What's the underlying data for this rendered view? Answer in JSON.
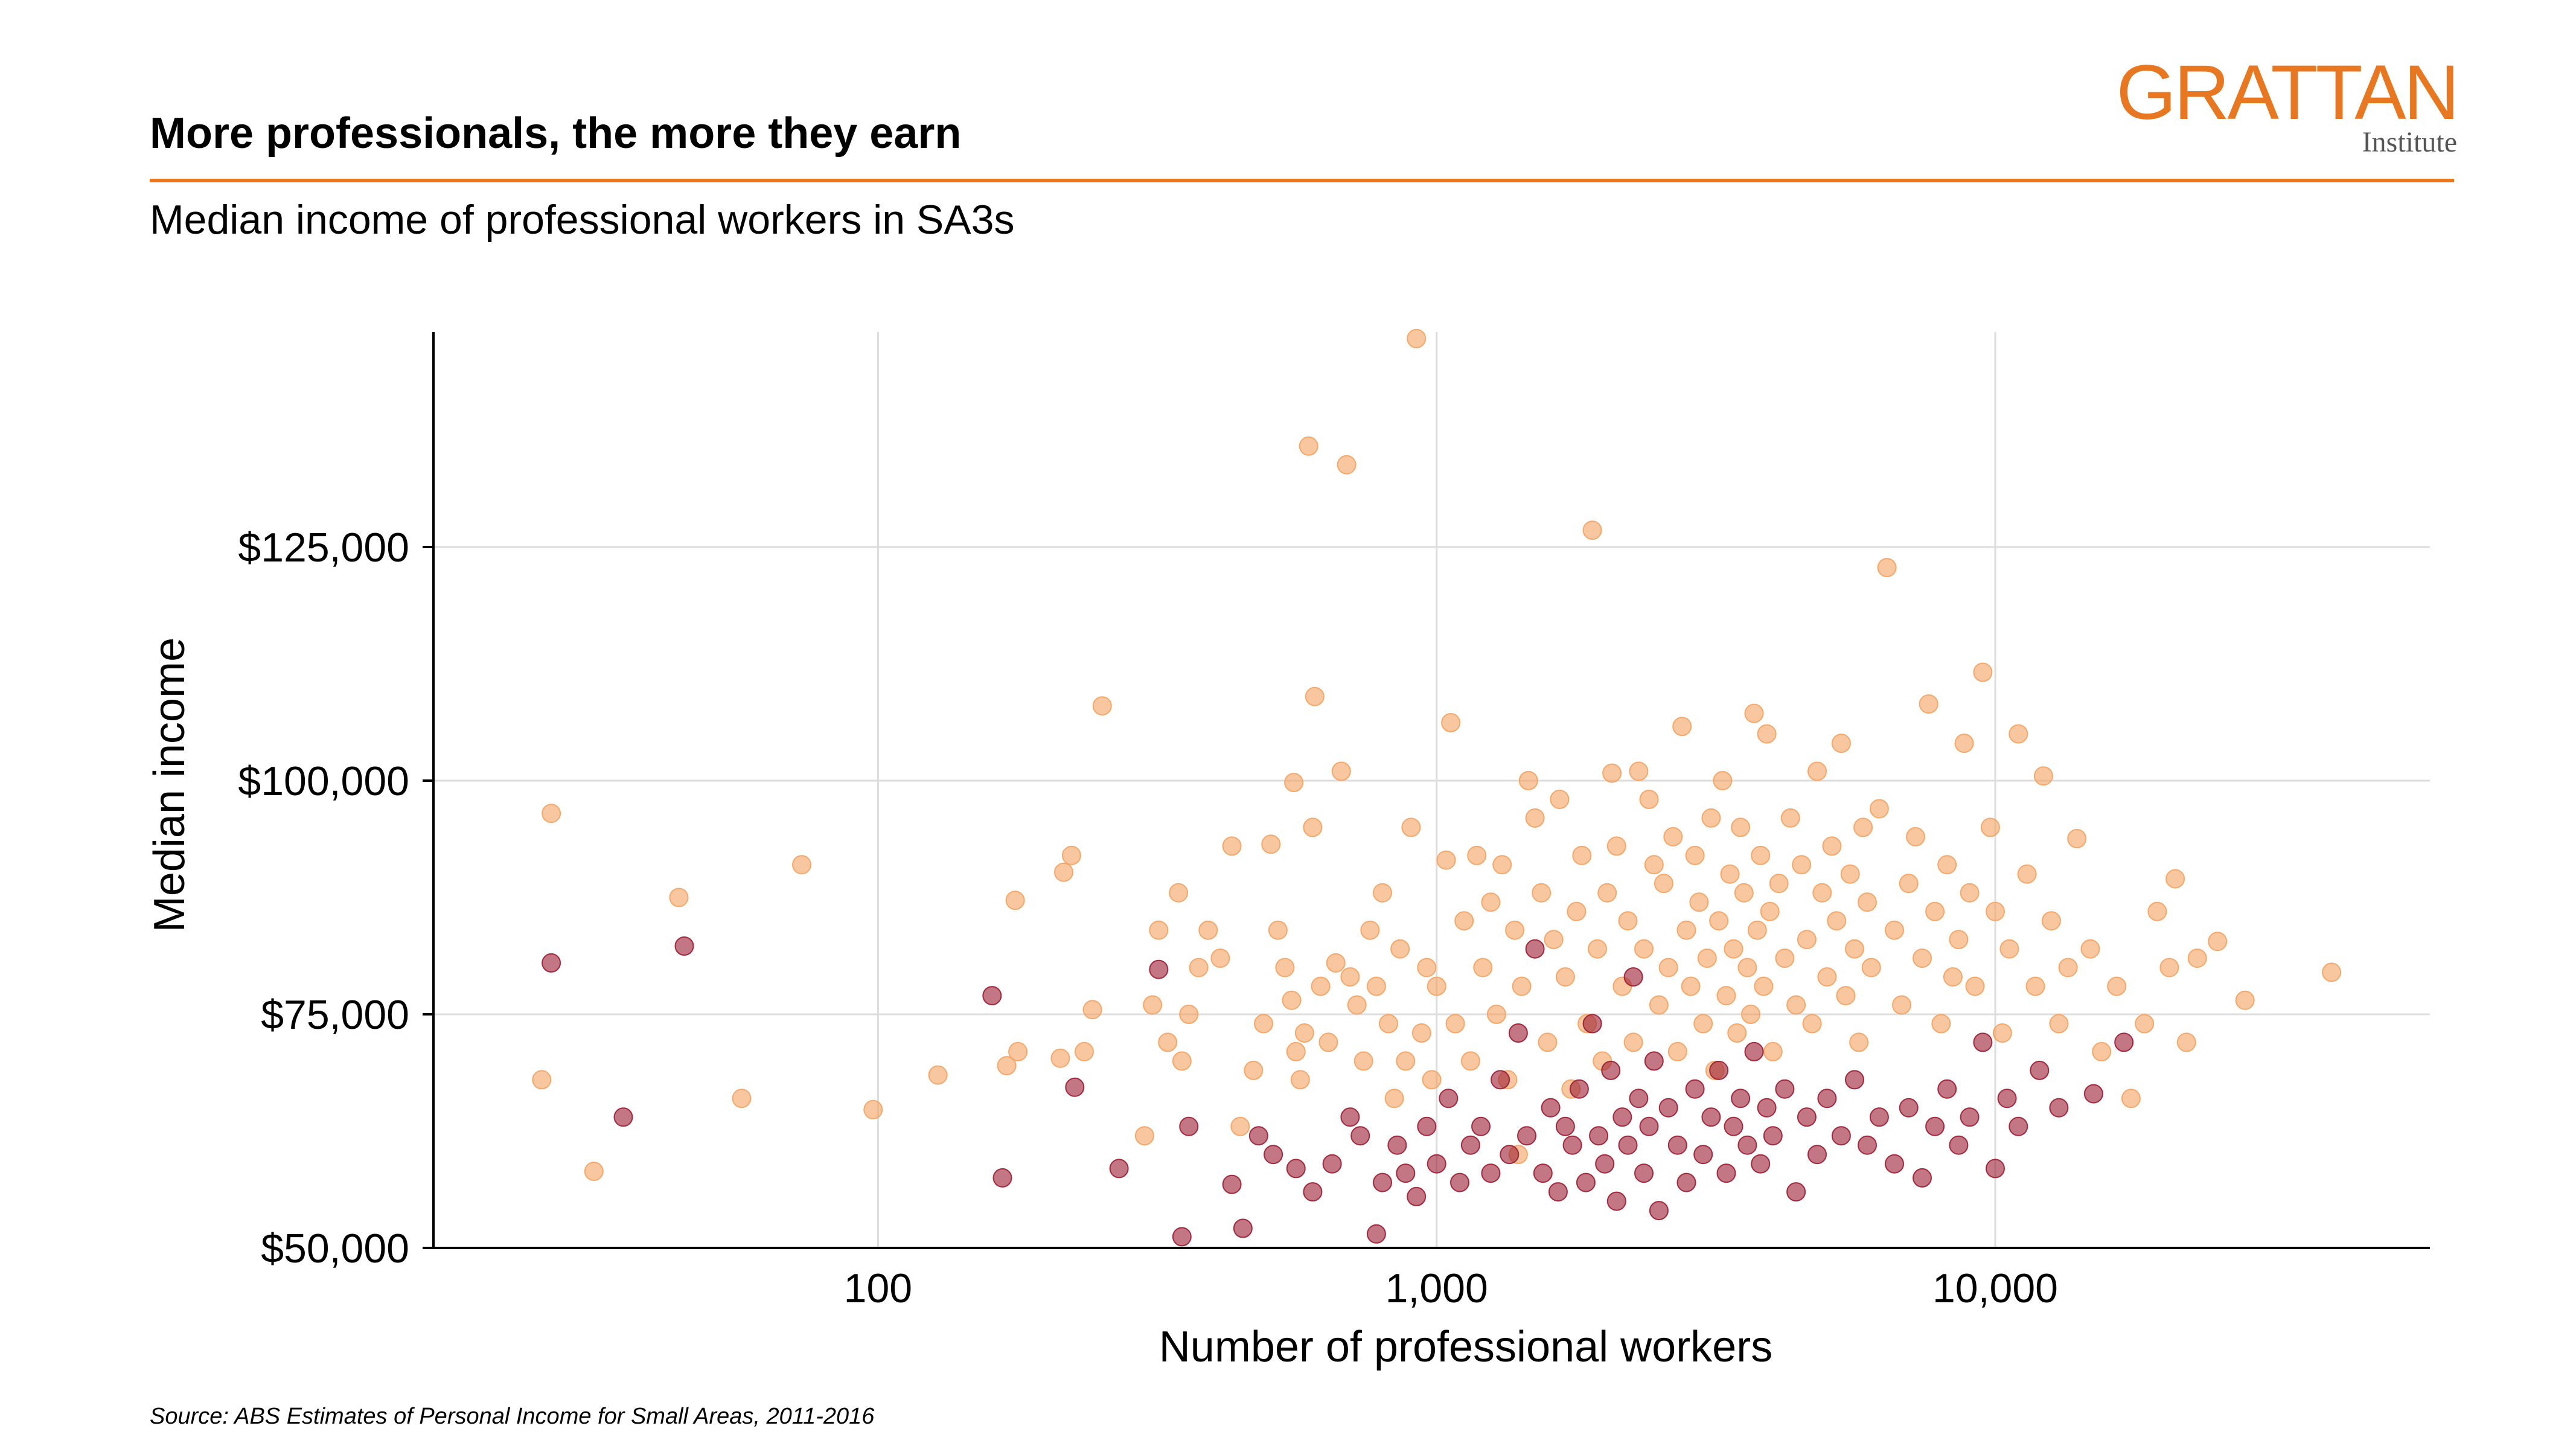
{
  "header": {
    "title": "More professionals, the more they earn",
    "subtitle": "Median income of professional workers in SA3s"
  },
  "logo": {
    "main": "GRATTAN",
    "sub": "Institute"
  },
  "source": "Source: ABS Estimates of Personal Income for Small Areas, 2011-2016",
  "colors": {
    "accent": "#E87722",
    "light_points": "#F4A261",
    "dark_points": "#9B1B30",
    "grid": "#dddddd"
  },
  "chart_data": {
    "type": "scatter",
    "title": "More professionals, the more they earn",
    "subtitle": "Median income of professional workers in SA3s",
    "xlabel": "Number of professional workers",
    "ylabel": "Median income",
    "x_scale": "log",
    "xlim": [
      16,
      60000
    ],
    "ylim": [
      50000,
      148000
    ],
    "x_ticks": [
      100,
      1000,
      10000
    ],
    "x_tick_labels": [
      "100",
      "1,000",
      "10,000"
    ],
    "y_ticks": [
      50000,
      75000,
      100000,
      125000
    ],
    "y_tick_labels": [
      "$50,000",
      "$75,000",
      "$100,000",
      "$125,000"
    ],
    "grid": true,
    "legend": "none",
    "series": [
      {
        "color": "#F4A261",
        "points": [
          [
            25,
            68000
          ],
          [
            26,
            96500
          ],
          [
            31,
            58200
          ],
          [
            44,
            87500
          ],
          [
            57,
            66000
          ],
          [
            73,
            91000
          ],
          [
            98,
            64800
          ],
          [
            128,
            68500
          ],
          [
            170,
            69500
          ],
          [
            176,
            87200
          ],
          [
            178,
            71000
          ],
          [
            212,
            70300
          ],
          [
            215,
            90200
          ],
          [
            222,
            92000
          ],
          [
            234,
            71000
          ],
          [
            242,
            75500
          ],
          [
            252,
            108000
          ],
          [
            300,
            62000
          ],
          [
            310,
            76000
          ],
          [
            318,
            84000
          ],
          [
            330,
            72000
          ],
          [
            345,
            88000
          ],
          [
            350,
            70000
          ],
          [
            360,
            75000
          ],
          [
            375,
            80000
          ],
          [
            390,
            84000
          ],
          [
            410,
            81000
          ],
          [
            430,
            93000
          ],
          [
            445,
            63000
          ],
          [
            470,
            69000
          ],
          [
            490,
            74000
          ],
          [
            505,
            93200
          ],
          [
            520,
            84000
          ],
          [
            535,
            80000
          ],
          [
            550,
            76500
          ],
          [
            555,
            99800
          ],
          [
            560,
            71000
          ],
          [
            570,
            68000
          ],
          [
            580,
            73000
          ],
          [
            590,
            135800
          ],
          [
            600,
            95000
          ],
          [
            605,
            109000
          ],
          [
            620,
            78000
          ],
          [
            640,
            72000
          ],
          [
            660,
            80500
          ],
          [
            675,
            101000
          ],
          [
            690,
            133800
          ],
          [
            700,
            79000
          ],
          [
            720,
            76000
          ],
          [
            740,
            70000
          ],
          [
            760,
            84000
          ],
          [
            780,
            78000
          ],
          [
            800,
            88000
          ],
          [
            820,
            74000
          ],
          [
            840,
            66000
          ],
          [
            860,
            82000
          ],
          [
            880,
            70000
          ],
          [
            900,
            95000
          ],
          [
            920,
            147300
          ],
          [
            940,
            73000
          ],
          [
            960,
            80000
          ],
          [
            980,
            68000
          ],
          [
            1000,
            78000
          ],
          [
            1040,
            91500
          ],
          [
            1060,
            106200
          ],
          [
            1080,
            74000
          ],
          [
            1120,
            85000
          ],
          [
            1150,
            70000
          ],
          [
            1180,
            92000
          ],
          [
            1210,
            80000
          ],
          [
            1250,
            87000
          ],
          [
            1280,
            75000
          ],
          [
            1310,
            91000
          ],
          [
            1340,
            68000
          ],
          [
            1380,
            84000
          ],
          [
            1400,
            60000
          ],
          [
            1420,
            78000
          ],
          [
            1460,
            100000
          ],
          [
            1500,
            96000
          ],
          [
            1540,
            88000
          ],
          [
            1580,
            72000
          ],
          [
            1620,
            83000
          ],
          [
            1660,
            98000
          ],
          [
            1700,
            79000
          ],
          [
            1740,
            67000
          ],
          [
            1780,
            86000
          ],
          [
            1820,
            92000
          ],
          [
            1860,
            74000
          ],
          [
            1900,
            126800
          ],
          [
            1940,
            82000
          ],
          [
            1980,
            70000
          ],
          [
            2020,
            88000
          ],
          [
            2060,
            100800
          ],
          [
            2100,
            93000
          ],
          [
            2150,
            78000
          ],
          [
            2200,
            85000
          ],
          [
            2250,
            72000
          ],
          [
            2300,
            101000
          ],
          [
            2350,
            82000
          ],
          [
            2400,
            98000
          ],
          [
            2450,
            91000
          ],
          [
            2500,
            76000
          ],
          [
            2550,
            89000
          ],
          [
            2600,
            80000
          ],
          [
            2650,
            94000
          ],
          [
            2700,
            71000
          ],
          [
            2750,
            105800
          ],
          [
            2800,
            84000
          ],
          [
            2850,
            78000
          ],
          [
            2900,
            92000
          ],
          [
            2950,
            87000
          ],
          [
            3000,
            74000
          ],
          [
            3050,
            81000
          ],
          [
            3100,
            96000
          ],
          [
            3150,
            69000
          ],
          [
            3200,
            85000
          ],
          [
            3250,
            100000
          ],
          [
            3300,
            77000
          ],
          [
            3350,
            90000
          ],
          [
            3400,
            82000
          ],
          [
            3450,
            73000
          ],
          [
            3500,
            95000
          ],
          [
            3550,
            88000
          ],
          [
            3600,
            80000
          ],
          [
            3650,
            75000
          ],
          [
            3700,
            107200
          ],
          [
            3750,
            84000
          ],
          [
            3800,
            92000
          ],
          [
            3850,
            78000
          ],
          [
            3900,
            105000
          ],
          [
            3950,
            86000
          ],
          [
            4000,
            71000
          ],
          [
            4100,
            89000
          ],
          [
            4200,
            81000
          ],
          [
            4300,
            96000
          ],
          [
            4400,
            76000
          ],
          [
            4500,
            91000
          ],
          [
            4600,
            83000
          ],
          [
            4700,
            74000
          ],
          [
            4800,
            101000
          ],
          [
            4900,
            88000
          ],
          [
            5000,
            79000
          ],
          [
            5100,
            93000
          ],
          [
            5200,
            85000
          ],
          [
            5300,
            104000
          ],
          [
            5400,
            77000
          ],
          [
            5500,
            90000
          ],
          [
            5600,
            82000
          ],
          [
            5700,
            72000
          ],
          [
            5800,
            95000
          ],
          [
            5900,
            87000
          ],
          [
            6000,
            80000
          ],
          [
            6200,
            97000
          ],
          [
            6400,
            122800
          ],
          [
            6600,
            84000
          ],
          [
            6800,
            76000
          ],
          [
            7000,
            89000
          ],
          [
            7200,
            94000
          ],
          [
            7400,
            81000
          ],
          [
            7600,
            108200
          ],
          [
            7800,
            86000
          ],
          [
            8000,
            74000
          ],
          [
            8200,
            91000
          ],
          [
            8400,
            79000
          ],
          [
            8600,
            83000
          ],
          [
            8800,
            104000
          ],
          [
            9000,
            88000
          ],
          [
            9200,
            78000
          ],
          [
            9500,
            111600
          ],
          [
            9800,
            95000
          ],
          [
            10000,
            86000
          ],
          [
            10300,
            73000
          ],
          [
            10600,
            82000
          ],
          [
            11000,
            105000
          ],
          [
            11400,
            90000
          ],
          [
            11800,
            78000
          ],
          [
            12200,
            100500
          ],
          [
            12600,
            85000
          ],
          [
            13000,
            74000
          ],
          [
            13500,
            80000
          ],
          [
            14000,
            93800
          ],
          [
            14800,
            82000
          ],
          [
            15500,
            71000
          ],
          [
            16500,
            78000
          ],
          [
            17500,
            66000
          ],
          [
            18500,
            74000
          ],
          [
            19500,
            86000
          ],
          [
            20500,
            80000
          ],
          [
            21000,
            89500
          ],
          [
            22000,
            72000
          ],
          [
            23000,
            81000
          ],
          [
            25000,
            82800
          ],
          [
            28000,
            76500
          ],
          [
            40000,
            79500
          ]
        ]
      },
      {
        "color": "#9B1B30",
        "points": [
          [
            26,
            80500
          ],
          [
            35,
            64000
          ],
          [
            45,
            82300
          ],
          [
            160,
            77000
          ],
          [
            167,
            57500
          ],
          [
            225,
            67200
          ],
          [
            270,
            58500
          ],
          [
            318,
            79800
          ],
          [
            350,
            51200
          ],
          [
            360,
            63000
          ],
          [
            430,
            56800
          ],
          [
            450,
            52100
          ],
          [
            480,
            62000
          ],
          [
            510,
            60000
          ],
          [
            560,
            58500
          ],
          [
            600,
            56000
          ],
          [
            650,
            59000
          ],
          [
            700,
            64000
          ],
          [
            730,
            62000
          ],
          [
            780,
            51500
          ],
          [
            800,
            57000
          ],
          [
            850,
            61000
          ],
          [
            880,
            58000
          ],
          [
            920,
            55500
          ],
          [
            960,
            63000
          ],
          [
            1000,
            59000
          ],
          [
            1050,
            66000
          ],
          [
            1100,
            57000
          ],
          [
            1150,
            61000
          ],
          [
            1200,
            63000
          ],
          [
            1250,
            58000
          ],
          [
            1300,
            68000
          ],
          [
            1350,
            60000
          ],
          [
            1400,
            73000
          ],
          [
            1450,
            62000
          ],
          [
            1500,
            82000
          ],
          [
            1550,
            58000
          ],
          [
            1600,
            65000
          ],
          [
            1650,
            56000
          ],
          [
            1700,
            63000
          ],
          [
            1750,
            61000
          ],
          [
            1800,
            67000
          ],
          [
            1850,
            57000
          ],
          [
            1900,
            74000
          ],
          [
            1950,
            62000
          ],
          [
            2000,
            59000
          ],
          [
            2050,
            69000
          ],
          [
            2100,
            55000
          ],
          [
            2150,
            64000
          ],
          [
            2200,
            61000
          ],
          [
            2250,
            79000
          ],
          [
            2300,
            66000
          ],
          [
            2350,
            58000
          ],
          [
            2400,
            63000
          ],
          [
            2450,
            70000
          ],
          [
            2500,
            54000
          ],
          [
            2600,
            65000
          ],
          [
            2700,
            61000
          ],
          [
            2800,
            57000
          ],
          [
            2900,
            67000
          ],
          [
            3000,
            60000
          ],
          [
            3100,
            64000
          ],
          [
            3200,
            69000
          ],
          [
            3300,
            58000
          ],
          [
            3400,
            63000
          ],
          [
            3500,
            66000
          ],
          [
            3600,
            61000
          ],
          [
            3700,
            71000
          ],
          [
            3800,
            59000
          ],
          [
            3900,
            65000
          ],
          [
            4000,
            62000
          ],
          [
            4200,
            67000
          ],
          [
            4400,
            56000
          ],
          [
            4600,
            64000
          ],
          [
            4800,
            60000
          ],
          [
            5000,
            66000
          ],
          [
            5300,
            62000
          ],
          [
            5600,
            68000
          ],
          [
            5900,
            61000
          ],
          [
            6200,
            64000
          ],
          [
            6600,
            59000
          ],
          [
            7000,
            65000
          ],
          [
            7400,
            57500
          ],
          [
            7800,
            63000
          ],
          [
            8200,
            67000
          ],
          [
            8600,
            61000
          ],
          [
            9000,
            64000
          ],
          [
            9500,
            72000
          ],
          [
            10000,
            58500
          ],
          [
            10500,
            66000
          ],
          [
            11000,
            63000
          ],
          [
            12000,
            69000
          ],
          [
            13000,
            65000
          ],
          [
            15000,
            66500
          ],
          [
            17000,
            72000
          ]
        ]
      }
    ]
  }
}
